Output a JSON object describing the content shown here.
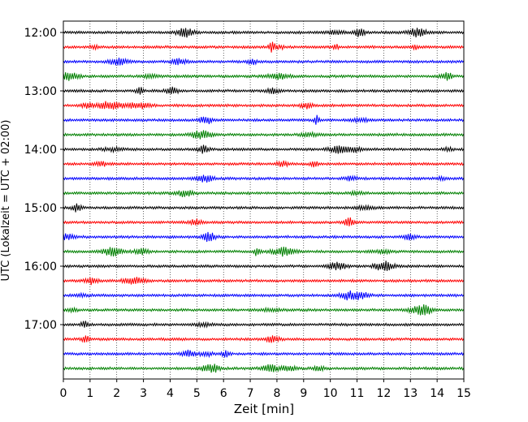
{
  "chart_data": {
    "type": "line",
    "title": "",
    "xlabel": "Zeit  [min]",
    "ylabel": "UTC (Lokalzeit = UTC + 02:00)",
    "xlim": [
      0,
      15
    ],
    "x_ticks": [
      "0",
      "1",
      "2",
      "3",
      "4",
      "5",
      "6",
      "7",
      "8",
      "9",
      "10",
      "11",
      "12",
      "13",
      "14",
      "15"
    ],
    "y_tick_labels": [
      "12:00",
      "13:00",
      "14:00",
      "15:00",
      "16:00",
      "17:00"
    ],
    "line_start_times": [
      "12:00",
      "12:15",
      "12:30",
      "12:45",
      "13:00",
      "13:15",
      "13:30",
      "13:45",
      "14:00",
      "14:15",
      "14:30",
      "14:45",
      "15:00",
      "15:15",
      "15:30",
      "15:45",
      "16:00",
      "16:15",
      "16:30",
      "16:45",
      "17:00",
      "17:15",
      "17:30",
      "17:45"
    ],
    "line_minutes": 15,
    "color_cycle": [
      "#000000",
      "#ff0000",
      "#0000ff",
      "#008000"
    ],
    "grid": "vertical-dotted",
    "legend": "none"
  }
}
